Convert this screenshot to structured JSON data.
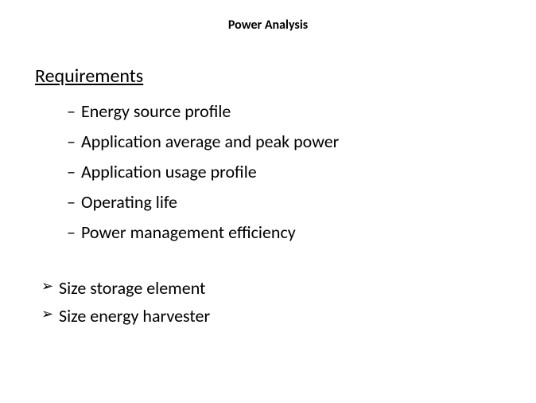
{
  "slide": {
    "title": "Power Analysis",
    "title_fontsize": 16,
    "title_fontweight": "bold",
    "background_color": "#ffffff",
    "text_color": "#000000"
  },
  "section": {
    "heading": "Requirements",
    "heading_fontsize": 24,
    "heading_underline": true
  },
  "dash_items": [
    "Energy source profile",
    "Application average and peak power",
    "Application usage profile",
    "Operating life",
    "Power management efficiency"
  ],
  "chevron_items": [
    "Size storage element",
    "Size energy harvester"
  ],
  "styling": {
    "body_fontsize": 22,
    "dash_bullet": "–",
    "chevron_bullet": "➢",
    "font_family": "Calibri"
  }
}
